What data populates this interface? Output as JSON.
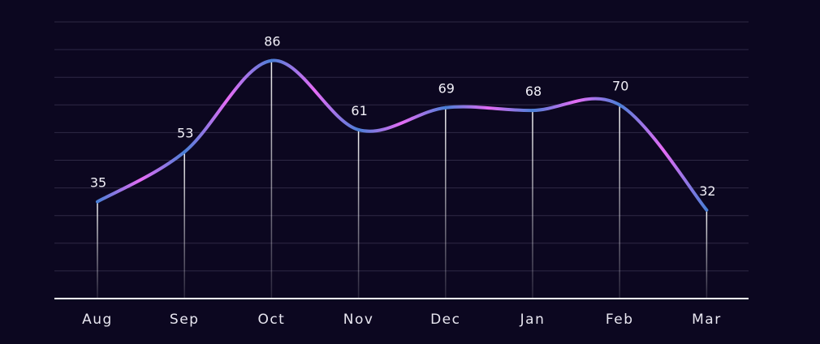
{
  "chart_data": {
    "type": "line",
    "categories": [
      "Aug",
      "Sep",
      "Oct",
      "Nov",
      "Dec",
      "Jan",
      "Feb",
      "Mar"
    ],
    "values": [
      35,
      53,
      86,
      61,
      69,
      68,
      70,
      32
    ],
    "title": "",
    "xlabel": "",
    "ylabel": "",
    "ylim": [
      0,
      100
    ],
    "grid": true,
    "show_y_tick_labels": false,
    "show_data_labels": true,
    "curve": "smooth",
    "drop_lines": true
  },
  "colors": {
    "background": "#0c0720",
    "gridline": "#2e2845",
    "axis": "#ffffff",
    "line_gradient_blue": "#4a7fd6",
    "line_gradient_pink": "#e56cf5",
    "text": "#e8e6f0"
  }
}
